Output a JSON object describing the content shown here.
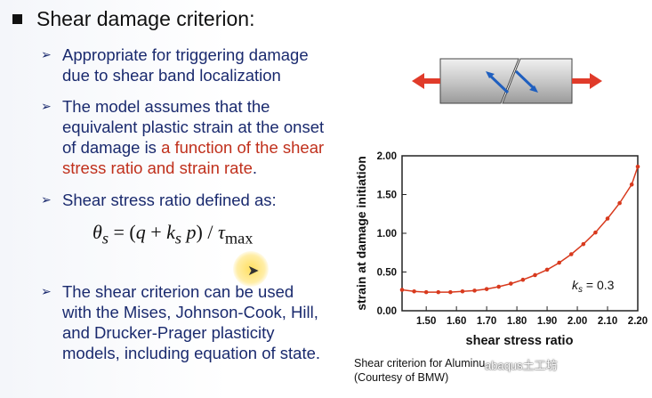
{
  "title": "Shear damage criterion:",
  "bullets": [
    {
      "lines": [
        "Appropriate for triggering damage",
        "due to shear band localization"
      ]
    },
    {
      "lines": [
        "The model assumes that the",
        "equivalent plastic strain at the onset"
      ],
      "line3_pre": "of damage is ",
      "line3_red": "a function of the shear",
      "line4_red": "stress ratio and strain rate",
      "line4_post": "."
    },
    {
      "lines": [
        "Shear stress ratio defined as:"
      ]
    },
    {
      "lines": [
        "The shear criterion can be used",
        "with the Mises, Johnson-Cook, Hill,",
        "and Drucker-Prager plasticity",
        "models, including equation of state."
      ]
    }
  ],
  "formula": {
    "lhs": "θ",
    "lhs_sub": "s",
    "eq": " = (",
    "q": "q",
    "plus": " + ",
    "k": "k",
    "k_sub": "s",
    "p": " p",
    "close": ") / ",
    "tau": "τ",
    "tau_sub": "max"
  },
  "chart_data": {
    "type": "line",
    "title": "",
    "xlabel": "shear stress ratio",
    "ylabel": "strain at damage initiation",
    "xlim": [
      1.42,
      2.2
    ],
    "ylim": [
      0.0,
      2.0
    ],
    "xticks": [
      "1.50",
      "1.60",
      "1.70",
      "1.80",
      "1.90",
      "2.00",
      "2.10",
      "2.20"
    ],
    "yticks": [
      "0.00",
      "0.50",
      "1.00",
      "1.50",
      "2.00"
    ],
    "annotation": {
      "k": "k",
      "k_sub": "s",
      "value": " = 0.3"
    },
    "series": [
      {
        "color": "#d83a1e",
        "x": [
          1.42,
          1.46,
          1.5,
          1.54,
          1.58,
          1.62,
          1.66,
          1.7,
          1.74,
          1.78,
          1.82,
          1.86,
          1.9,
          1.94,
          1.98,
          2.02,
          2.06,
          2.1,
          2.14,
          2.18,
          2.2
        ],
        "y": [
          0.27,
          0.25,
          0.24,
          0.24,
          0.24,
          0.25,
          0.26,
          0.28,
          0.31,
          0.35,
          0.4,
          0.46,
          0.53,
          0.62,
          0.73,
          0.86,
          1.01,
          1.19,
          1.39,
          1.63,
          1.86
        ]
      }
    ]
  },
  "caption": {
    "line1": "Shear criterion for Aluminu",
    "line2": "(Courtesy of BMW)"
  },
  "watermark": "abaqus土工坊",
  "colors": {
    "text": "#1a2a6e",
    "highlight": "#c0301c",
    "curve": "#d83a1e",
    "arrow": "#e03b2a",
    "shear_arrow": "#1f5fbf"
  }
}
